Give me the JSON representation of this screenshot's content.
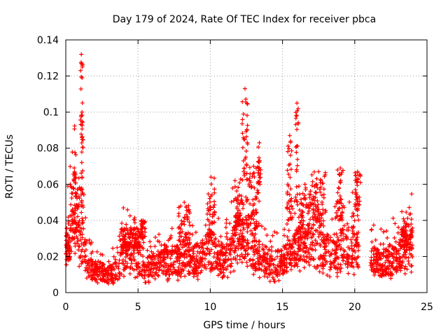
{
  "chart_data": {
    "type": "scatter",
    "title": "Day 179 of 2024, Rate Of TEC Index for receiver pbca",
    "xlabel": "GPS time / hours",
    "ylabel": "ROTI / TECUs",
    "xlim": [
      0,
      25
    ],
    "ylim": [
      0,
      0.14
    ],
    "xticks": [
      0,
      5,
      10,
      15,
      20,
      25
    ],
    "yticks": [
      0,
      0.02,
      0.04,
      0.06,
      0.08,
      0.1,
      0.12,
      0.14
    ],
    "xtick_labels": [
      "0",
      "5",
      "10",
      "15",
      "20",
      "25"
    ],
    "ytick_labels": [
      "0",
      "0.02",
      "0.04",
      "0.06",
      "0.08",
      "0.1",
      "0.12",
      "0.14"
    ],
    "grid": true,
    "grid_style": "dotted",
    "marker": "plus",
    "color": "#ff0000",
    "data_gap": [
      20.3,
      21.1
    ],
    "x_range": [
      0,
      24
    ],
    "series": [
      {
        "profile": [
          [
            0.0,
            0.026
          ],
          [
            0.3,
            0.032
          ],
          [
            0.5,
            0.05
          ],
          [
            0.7,
            0.045
          ],
          [
            0.9,
            0.035
          ],
          [
            1.2,
            0.028
          ],
          [
            1.5,
            0.014
          ],
          [
            2.0,
            0.012
          ],
          [
            3.0,
            0.011
          ],
          [
            3.6,
            0.012
          ],
          [
            4.0,
            0.022
          ],
          [
            4.5,
            0.024
          ],
          [
            5.0,
            0.02
          ],
          [
            5.5,
            0.014
          ],
          [
            6.5,
            0.016
          ],
          [
            7.5,
            0.018
          ],
          [
            8.5,
            0.016
          ],
          [
            9.5,
            0.021
          ],
          [
            10.0,
            0.024
          ],
          [
            10.5,
            0.02
          ],
          [
            11.0,
            0.018
          ],
          [
            11.5,
            0.027
          ],
          [
            12.0,
            0.032
          ],
          [
            12.5,
            0.028
          ],
          [
            13.0,
            0.022
          ],
          [
            14.0,
            0.017
          ],
          [
            14.5,
            0.016
          ],
          [
            15.0,
            0.017
          ],
          [
            15.5,
            0.02
          ],
          [
            16.0,
            0.026
          ],
          [
            17.0,
            0.025
          ],
          [
            18.0,
            0.022
          ],
          [
            19.0,
            0.024
          ],
          [
            20.0,
            0.026
          ],
          [
            20.3,
            0.025
          ],
          [
            21.1,
            0.018
          ],
          [
            22.0,
            0.016
          ],
          [
            23.0,
            0.021
          ],
          [
            24.0,
            0.027
          ]
        ],
        "clusters": [
          [
            0.0,
            0.3,
            0.018,
            0.032
          ],
          [
            0.3,
            1.0,
            0.03,
            0.066
          ],
          [
            1.0,
            1.15,
            0.08,
            0.132
          ],
          [
            1.05,
            1.2,
            0.048,
            0.1
          ],
          [
            3.8,
            5.2,
            0.025,
            0.036
          ],
          [
            5.2,
            5.5,
            0.03,
            0.04
          ],
          [
            7.8,
            8.6,
            0.025,
            0.05
          ],
          [
            9.8,
            10.3,
            0.03,
            0.064
          ],
          [
            11.7,
            12.3,
            0.035,
            0.054
          ],
          [
            12.2,
            12.6,
            0.06,
            0.113
          ],
          [
            12.6,
            13.4,
            0.035,
            0.07
          ],
          [
            13.3,
            13.5,
            0.06,
            0.083
          ],
          [
            15.3,
            15.7,
            0.04,
            0.087
          ],
          [
            15.9,
            16.1,
            0.05,
            0.105
          ],
          [
            16.1,
            17.0,
            0.03,
            0.06
          ],
          [
            17.0,
            18.0,
            0.035,
            0.067
          ],
          [
            18.8,
            19.2,
            0.04,
            0.069
          ],
          [
            20.0,
            20.4,
            0.045,
            0.067
          ],
          [
            23.2,
            24.0,
            0.025,
            0.038
          ]
        ]
      }
    ]
  }
}
